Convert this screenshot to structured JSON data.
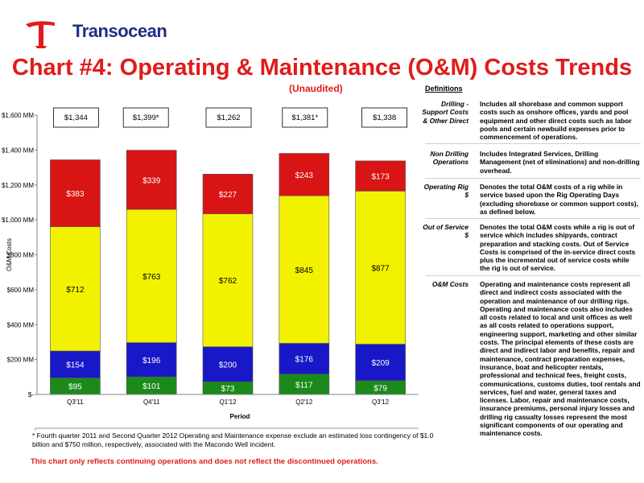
{
  "logo": {
    "text": "Transocean"
  },
  "title": "Chart #4: Operating & Maintenance (O&M) Costs Trends",
  "subtitle": "(Unaudited)",
  "definitions": {
    "header": "Definitions",
    "items": [
      {
        "term": "Drilling - Support Costs & Other Direct",
        "text": "Includes all shorebase and common support costs such as onshore offices, yards and pool equipment and other direct costs such as labor pools and certain newbuild expenses prior to commencement of operations."
      },
      {
        "term": "Non Drilling Operations",
        "text": "Includes Integrated Services, Drilling Management (net of eliminations) and non-drilling overhead."
      },
      {
        "term": "Operating Rig $",
        "text": "Denotes the total O&M costs of a rig while in service based upon the Rig Operating Days (excluding shorebase or common support costs), as defined below."
      },
      {
        "term": "Out of Service $",
        "text": "Denotes the total O&M costs while a rig is out of service which includes shipyards, contract preparation and stacking costs. Out of Service Costs is comprised of the in-service direct costs plus the incremental out of service costs while the rig is out of service."
      },
      {
        "term": "O&M Costs",
        "text": "Operating and maintenance costs represent all direct and indirect costs associated with the operation and maintenance of our drilling rigs. Operating and maintenance costs also includes all costs related to local and unit offices as well as all costs related to operations support, engineering support, marketing and other similar costs. The principal elements of these costs are direct and indirect labor and benefits, repair and maintenance, contract preparation expenses, insurance, boat and helicopter rentals, professional and technical fees, freight costs, communications, customs duties, tool rentals and services, fuel and water, general taxes and licenses. Labor, repair and maintenance costs, insurance premiums, personal injury losses and drilling rig casualty losses represent the most significant components of our operating and maintenance costs."
      }
    ]
  },
  "footnote": "* Fourth quarter 2011 and Second Quarter 2012 Operating and Maintenance expense exclude an estimated loss contingency of $1.0 billion and $750 million, respectively, associated with the Macondo Well incident.",
  "bottom_note": "This chart only reflects continuing operations and does not reflect the discontinued operations.",
  "colors": {
    "non_drilling": "#1b8a1b",
    "drilling_support": "#1818c8",
    "operating_rig": "#f2f200",
    "out_of_service": "#d81414"
  },
  "chart_data": {
    "type": "bar",
    "stacked": true,
    "categories": [
      "Q3'11",
      "Q4'11",
      "Q1'12",
      "Q2'12",
      "Q3'12"
    ],
    "series": [
      {
        "name": "Non Drilling Operations $",
        "values": [
          95,
          101,
          73,
          117,
          79
        ],
        "labels": [
          "$95",
          "$101",
          "$73",
          "$117",
          "$79"
        ]
      },
      {
        "name": "Drilling-Support Costs & Other Direct $",
        "values": [
          154,
          196,
          200,
          176,
          209
        ],
        "labels": [
          "$154",
          "$196",
          "$200",
          "$176",
          "$209"
        ]
      },
      {
        "name": "Operating Rig $",
        "values": [
          712,
          763,
          762,
          845,
          877
        ],
        "labels": [
          "$712",
          "$763",
          "$762",
          "$845",
          "$877"
        ]
      },
      {
        "name": "Out of Service $",
        "values": [
          383,
          339,
          227,
          243,
          173
        ],
        "labels": [
          "$383",
          "$339",
          "$227",
          "$243",
          "$173"
        ]
      }
    ],
    "totals": [
      "$1,344",
      "$1,399*",
      "$1,262",
      "$1,381*",
      "$1,338"
    ],
    "xlabel": "Period",
    "ylabel": "O&M Costs",
    "ylim": [
      0,
      1600
    ],
    "yticks": [
      "$-",
      "$200 MM",
      "$400 MM",
      "$600 MM",
      "$800 MM",
      "$1,000 MM",
      "$1,200 MM",
      "$1,400 MM",
      "$1,600 MM"
    ],
    "legend_order": [
      "Out of Service $",
      "Operating Rig $",
      "Drilling-Support Costs & Other Direct $",
      "Non Drilling Operations $"
    ],
    "legend": "bottom",
    "grid": false
  }
}
